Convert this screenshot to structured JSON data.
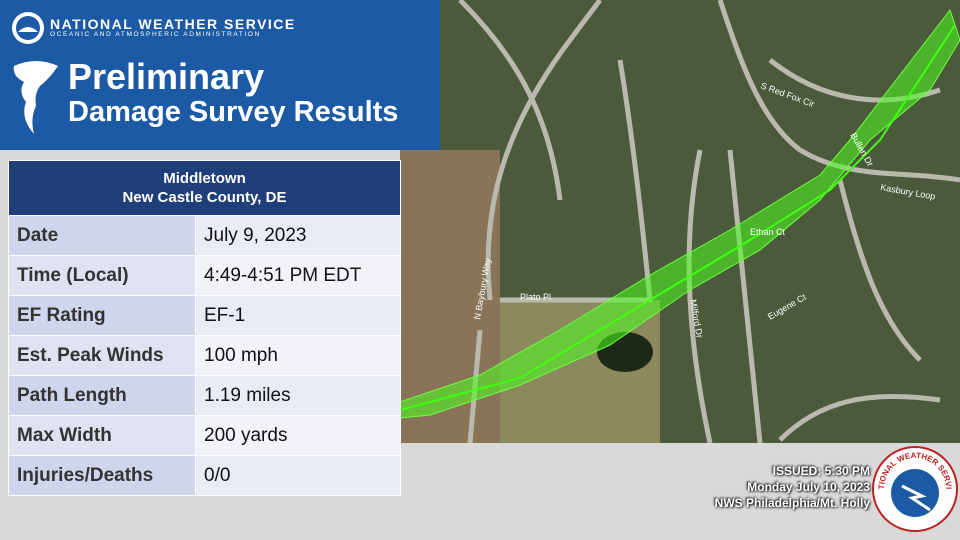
{
  "header": {
    "org": "NATIONAL WEATHER SERVICE",
    "org_sub": "OCEANIC AND ATMOSPHERIC ADMINISTRATION",
    "title_1": "Preliminary",
    "title_2": "Damage Survey Results"
  },
  "table": {
    "location_1": "Middletown",
    "location_2": "New Castle County, DE",
    "rows": [
      [
        "Date",
        "July 9, 2023"
      ],
      [
        "Time (Local)",
        "4:49-4:51 PM EDT"
      ],
      [
        "EF Rating",
        "EF-1"
      ],
      [
        "Est. Peak Winds",
        "100 mph"
      ],
      [
        "Path Length",
        "1.19 miles"
      ],
      [
        "Max Width",
        "200 yards"
      ],
      [
        "Injuries/Deaths",
        "0/0"
      ]
    ]
  },
  "map": {
    "labels": [
      "Plato Pl",
      "Milford Dr",
      "Ethan Ct",
      "Bullen Dr",
      "Eugene Ct",
      "S Red Fox Cir",
      "Kasbury Loop",
      "N Baybury Way"
    ]
  },
  "footer": {
    "issued": "ISSUED: 5:30 PM",
    "date": "Monday July 10, 2023",
    "office": "NWS Philadelphia/Mt. Holly"
  },
  "logo": {
    "text": "NATIONAL WEATHER SERVICE"
  }
}
